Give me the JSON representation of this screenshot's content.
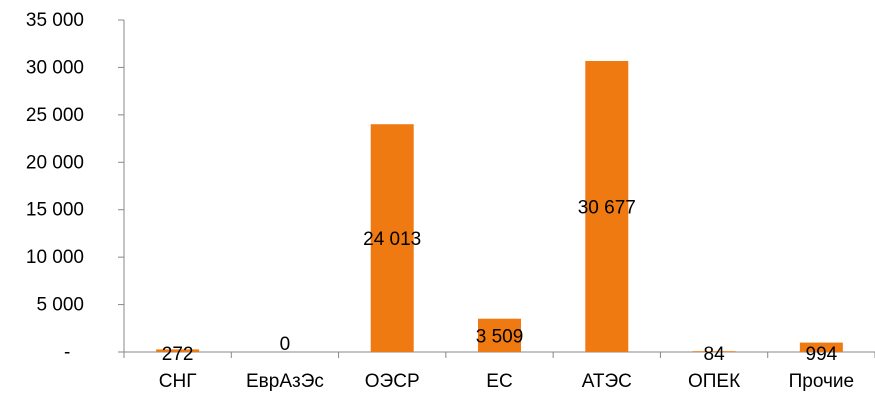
{
  "chart_data": {
    "type": "bar",
    "categories": [
      "СНГ",
      "ЕврАзЭс",
      "ОЭСР",
      "ЕС",
      "АТЭС",
      "ОПЕК",
      "Прочие"
    ],
    "values": [
      272,
      0,
      24013,
      3509,
      30677,
      84,
      994
    ],
    "data_labels": [
      "272",
      "0",
      "24 013",
      "3 509",
      "30 677",
      "84",
      "994"
    ],
    "ylim": [
      0,
      35000
    ],
    "y_ticks": [
      0,
      5000,
      10000,
      15000,
      20000,
      25000,
      30000,
      35000
    ],
    "y_tick_labels": [
      "-",
      "5 000",
      "10 000",
      "15 000",
      "20 000",
      "25 000",
      "30 000",
      "35 000"
    ],
    "bar_color": "#F07A12",
    "grid": false,
    "legend": "none"
  }
}
